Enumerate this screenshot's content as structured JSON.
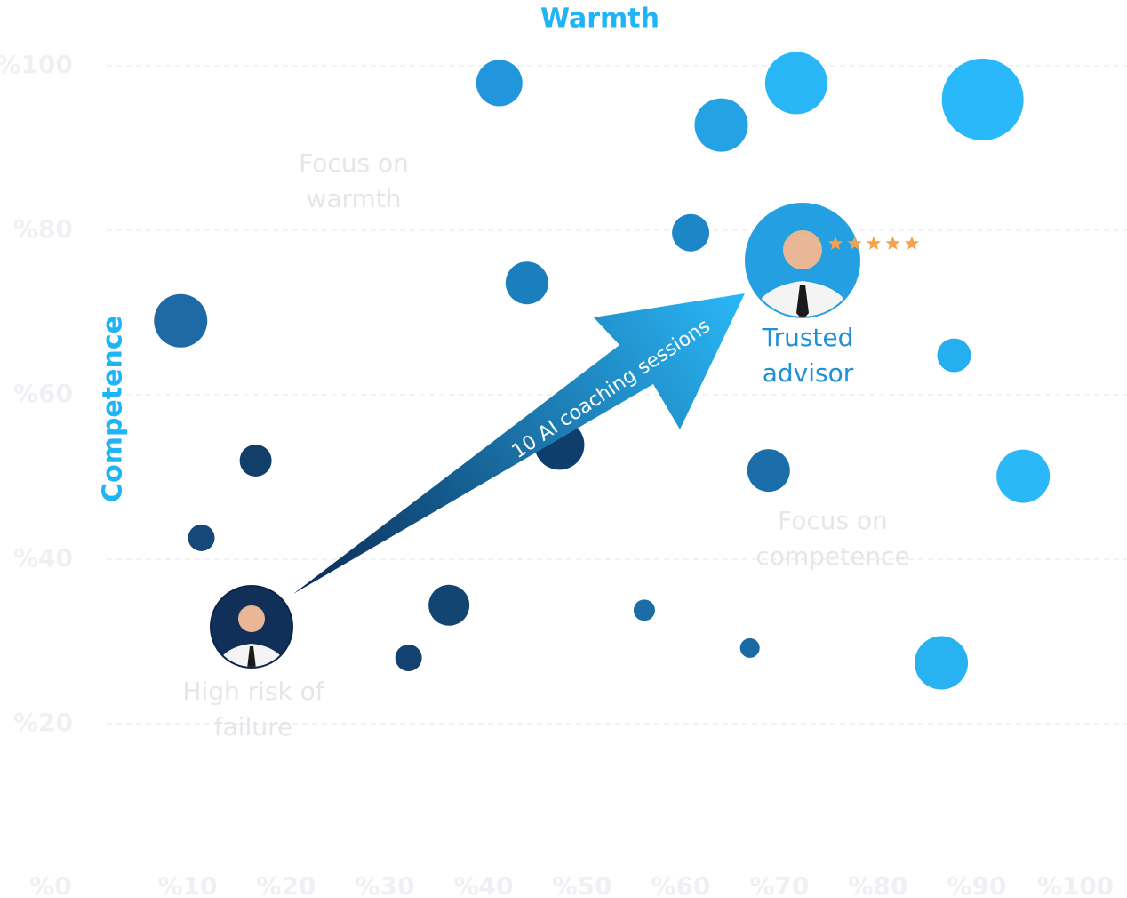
{
  "chart_data": {
    "type": "bubble",
    "x_label": "Warmth",
    "y_label": "Competence",
    "xlim": [
      0,
      100
    ],
    "ylim": [
      0,
      100
    ],
    "xticks": [
      {
        "value": 0,
        "label": "%0"
      },
      {
        "value": 10,
        "label": "%10"
      },
      {
        "value": 20,
        "label": "%20"
      },
      {
        "value": 30,
        "label": "%30"
      },
      {
        "value": 40,
        "label": "%40"
      },
      {
        "value": 50,
        "label": "%50"
      },
      {
        "value": 60,
        "label": "%60"
      },
      {
        "value": 70,
        "label": "%70"
      },
      {
        "value": 80,
        "label": "%80"
      },
      {
        "value": 90,
        "label": "%90"
      },
      {
        "value": 100,
        "label": "%100"
      }
    ],
    "yticks": [
      {
        "value": 20,
        "label": "%20"
      },
      {
        "value": 40,
        "label": "%40"
      },
      {
        "value": 60,
        "label": "%60"
      },
      {
        "value": 80,
        "label": "%80"
      },
      {
        "value": 100,
        "label": "%100"
      }
    ],
    "grid": true,
    "x": [
      41.6,
      71.7,
      64.1,
      90.6,
      61.0,
      44.4,
      9.3,
      87.7,
      47.7,
      16.9,
      68.9,
      94.7,
      11.4,
      36.5,
      56.3,
      32.4,
      67.0,
      86.4
    ],
    "values": [
      97.9,
      97.9,
      92.8,
      95.9,
      79.7,
      73.6,
      69.0,
      64.8,
      53.9,
      52.0,
      50.8,
      50.1,
      42.6,
      34.4,
      33.8,
      28.0,
      29.2,
      27.4
    ],
    "sizes": [
      26,
      35,
      30,
      46,
      21,
      24,
      30,
      19,
      28,
      18,
      24,
      30,
      15,
      23,
      12,
      15,
      11,
      30
    ],
    "colors": [
      "#2196dc",
      "#29b6f6",
      "#23a2e4",
      "#29b9fa",
      "#1d86c6",
      "#1c7fbd",
      "#1e6aa6",
      "#26aff0",
      "#103e6c",
      "#123f6a",
      "#1b6ea9",
      "#2ab8f8",
      "#16497a",
      "#134573",
      "#1c6ca8",
      "#144270",
      "#1b6aa6",
      "#28b2f2"
    ],
    "annotations": [
      "Focus on warmth",
      "Focus on competence",
      "High risk of failure",
      "Trusted advisor",
      "10 AI coaching sessions"
    ]
  }
}
